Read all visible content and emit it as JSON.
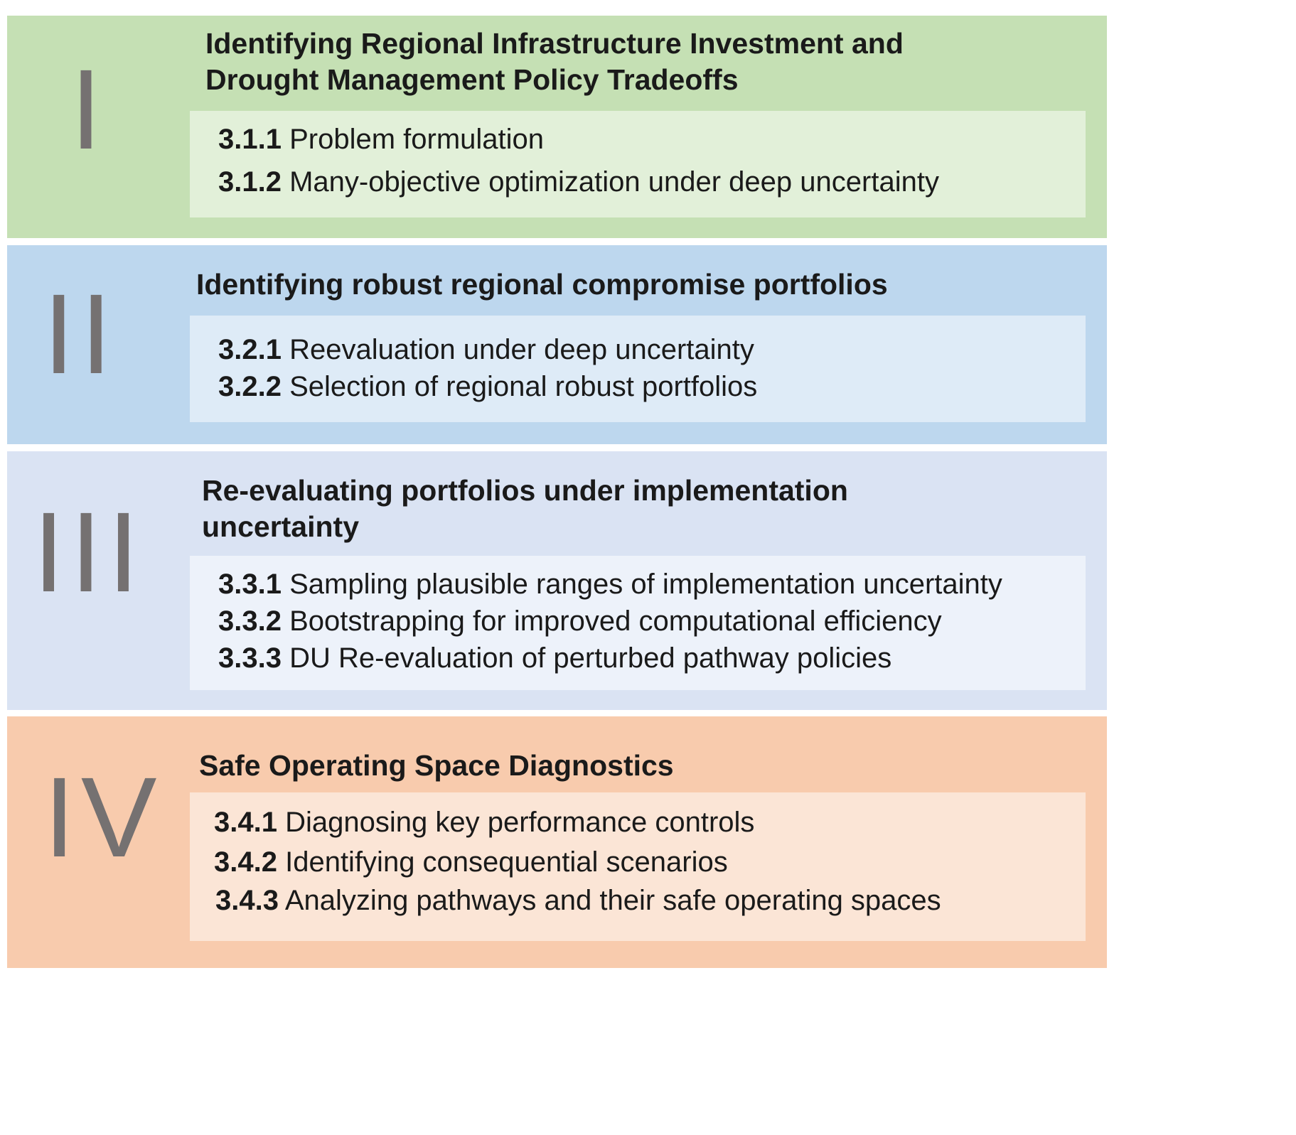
{
  "colors": {
    "panel_1": "#c5e0b4",
    "box_1": "#e2f0d9",
    "panel_2": "#bdd7ee",
    "box_2": "#deebf7",
    "panel_3": "#dae3f3",
    "box_3": "#edf2fa",
    "panel_4": "#f8cbad",
    "box_4": "#fbe5d6",
    "numeral": "#757171"
  },
  "panels": [
    {
      "numeral": "I",
      "heading_lines": [
        "Identifying Regional Infrastructure Investment and",
        "Drought Management Policy Tradeoffs"
      ],
      "items": [
        {
          "num": "3.1.1",
          "text": "Problem formulation"
        },
        {
          "num": "3.1.2",
          "text": "Many-objective optimization under deep uncertainty"
        }
      ]
    },
    {
      "numeral": "II",
      "heading_lines": [
        "Identifying robust regional compromise portfolios"
      ],
      "items": [
        {
          "num": "3.2.1",
          "text": "Reevaluation under deep uncertainty"
        },
        {
          "num": "3.2.2",
          "text": "Selection of regional robust portfolios"
        }
      ]
    },
    {
      "numeral": "III",
      "heading_lines": [
        "Re-evaluating portfolios under implementation",
        "uncertainty"
      ],
      "items": [
        {
          "num": "3.3.1",
          "text": "Sampling plausible ranges of implementation uncertainty"
        },
        {
          "num": "3.3.2",
          "text": "Bootstrapping for improved computational efficiency"
        },
        {
          "num": "3.3.3",
          "text": "DU Re-evaluation of perturbed pathway policies"
        }
      ]
    },
    {
      "numeral": "IV",
      "heading_lines": [
        "Safe Operating Space Diagnostics"
      ],
      "items": [
        {
          "num": "3.4.1",
          "text": "Diagnosing key performance controls"
        },
        {
          "num": "3.4.2",
          "text": "Identifying consequential scenarios"
        },
        {
          "num": "3.4.3",
          "text": "Analyzing pathways and their safe operating spaces"
        }
      ]
    }
  ]
}
